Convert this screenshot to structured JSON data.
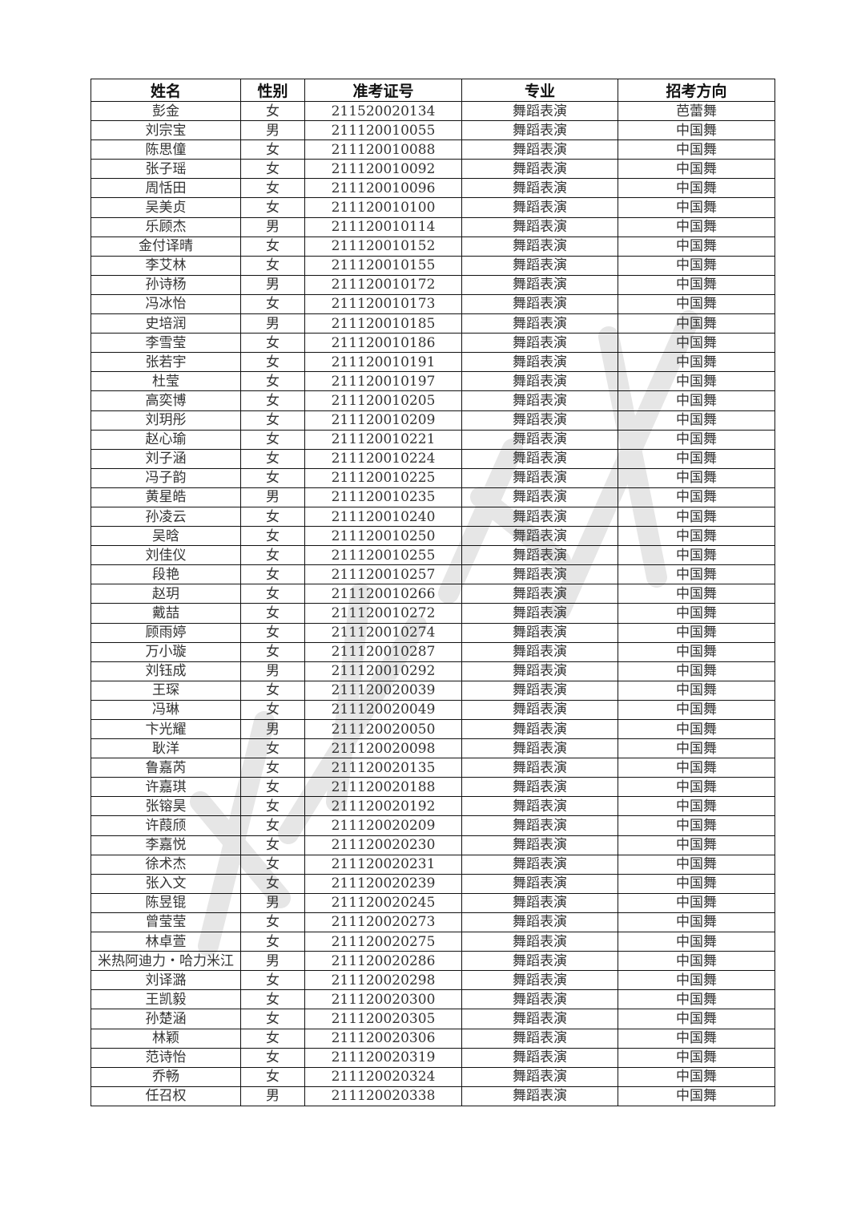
{
  "headers": [
    "姓名",
    "性别",
    "准考证号",
    "专业",
    "招考方向"
  ],
  "rows": [
    [
      "彭金",
      "女",
      "211520020134",
      "舞蹈表演",
      "芭蕾舞"
    ],
    [
      "刘宗宝",
      "男",
      "211120010055",
      "舞蹈表演",
      "中国舞"
    ],
    [
      "陈思僮",
      "女",
      "211120010088",
      "舞蹈表演",
      "中国舞"
    ],
    [
      "张子瑶",
      "女",
      "211120010092",
      "舞蹈表演",
      "中国舞"
    ],
    [
      "周恬田",
      "女",
      "211120010096",
      "舞蹈表演",
      "中国舞"
    ],
    [
      "吴美贞",
      "女",
      "211120010100",
      "舞蹈表演",
      "中国舞"
    ],
    [
      "乐顾杰",
      "男",
      "211120010114",
      "舞蹈表演",
      "中国舞"
    ],
    [
      "金付译晴",
      "女",
      "211120010152",
      "舞蹈表演",
      "中国舞"
    ],
    [
      "李艾林",
      "女",
      "211120010155",
      "舞蹈表演",
      "中国舞"
    ],
    [
      "孙诗杨",
      "男",
      "211120010172",
      "舞蹈表演",
      "中国舞"
    ],
    [
      "冯冰怡",
      "女",
      "211120010173",
      "舞蹈表演",
      "中国舞"
    ],
    [
      "史培润",
      "男",
      "211120010185",
      "舞蹈表演",
      "中国舞"
    ],
    [
      "李雪莹",
      "女",
      "211120010186",
      "舞蹈表演",
      "中国舞"
    ],
    [
      "张若宇",
      "女",
      "211120010191",
      "舞蹈表演",
      "中国舞"
    ],
    [
      "杜莹",
      "女",
      "211120010197",
      "舞蹈表演",
      "中国舞"
    ],
    [
      "高奕博",
      "女",
      "211120010205",
      "舞蹈表演",
      "中国舞"
    ],
    [
      "刘玥彤",
      "女",
      "211120010209",
      "舞蹈表演",
      "中国舞"
    ],
    [
      "赵心瑜",
      "女",
      "211120010221",
      "舞蹈表演",
      "中国舞"
    ],
    [
      "刘子涵",
      "女",
      "211120010224",
      "舞蹈表演",
      "中国舞"
    ],
    [
      "冯子韵",
      "女",
      "211120010225",
      "舞蹈表演",
      "中国舞"
    ],
    [
      "黄星皓",
      "男",
      "211120010235",
      "舞蹈表演",
      "中国舞"
    ],
    [
      "孙凌云",
      "女",
      "211120010240",
      "舞蹈表演",
      "中国舞"
    ],
    [
      "吴晗",
      "女",
      "211120010250",
      "舞蹈表演",
      "中国舞"
    ],
    [
      "刘佳仪",
      "女",
      "211120010255",
      "舞蹈表演",
      "中国舞"
    ],
    [
      "段艳",
      "女",
      "211120010257",
      "舞蹈表演",
      "中国舞"
    ],
    [
      "赵玥",
      "女",
      "211120010266",
      "舞蹈表演",
      "中国舞"
    ],
    [
      "戴喆",
      "女",
      "211120010272",
      "舞蹈表演",
      "中国舞"
    ],
    [
      "顾雨婷",
      "女",
      "211120010274",
      "舞蹈表演",
      "中国舞"
    ],
    [
      "万小璇",
      "女",
      "211120010287",
      "舞蹈表演",
      "中国舞"
    ],
    [
      "刘钰成",
      "男",
      "211120010292",
      "舞蹈表演",
      "中国舞"
    ],
    [
      "王琛",
      "女",
      "211120020039",
      "舞蹈表演",
      "中国舞"
    ],
    [
      "冯琳",
      "女",
      "211120020049",
      "舞蹈表演",
      "中国舞"
    ],
    [
      "卞光耀",
      "男",
      "211120020050",
      "舞蹈表演",
      "中国舞"
    ],
    [
      "耿洋",
      "女",
      "211120020098",
      "舞蹈表演",
      "中国舞"
    ],
    [
      "鲁嘉芮",
      "女",
      "211120020135",
      "舞蹈表演",
      "中国舞"
    ],
    [
      "许嘉琪",
      "女",
      "211120020188",
      "舞蹈表演",
      "中国舞"
    ],
    [
      "张镕昊",
      "女",
      "211120020192",
      "舞蹈表演",
      "中国舞"
    ],
    [
      "许葭颀",
      "女",
      "211120020209",
      "舞蹈表演",
      "中国舞"
    ],
    [
      "李嘉悦",
      "女",
      "211120020230",
      "舞蹈表演",
      "中国舞"
    ],
    [
      "徐术杰",
      "女",
      "211120020231",
      "舞蹈表演",
      "中国舞"
    ],
    [
      "张入文",
      "女",
      "211120020239",
      "舞蹈表演",
      "中国舞"
    ],
    [
      "陈昱锟",
      "男",
      "211120020245",
      "舞蹈表演",
      "中国舞"
    ],
    [
      "曾莹莹",
      "女",
      "211120020273",
      "舞蹈表演",
      "中国舞"
    ],
    [
      "林卓萱",
      "女",
      "211120020275",
      "舞蹈表演",
      "中国舞"
    ],
    [
      "米热阿迪力・哈力米江",
      "男",
      "211120020286",
      "舞蹈表演",
      "中国舞"
    ],
    [
      "刘译潞",
      "女",
      "211120020298",
      "舞蹈表演",
      "中国舞"
    ],
    [
      "王凯毅",
      "女",
      "211120020300",
      "舞蹈表演",
      "中国舞"
    ],
    [
      "孙楚涵",
      "女",
      "211120020305",
      "舞蹈表演",
      "中国舞"
    ],
    [
      "林颖",
      "女",
      "211120020306",
      "舞蹈表演",
      "中国舞"
    ],
    [
      "范诗怡",
      "女",
      "211120020319",
      "舞蹈表演",
      "中国舞"
    ],
    [
      "乔畅",
      "女",
      "211120020324",
      "舞蹈表演",
      "中国舞"
    ],
    [
      "任召权",
      "男",
      "211120020338",
      "舞蹈表演",
      "中国舞"
    ]
  ]
}
